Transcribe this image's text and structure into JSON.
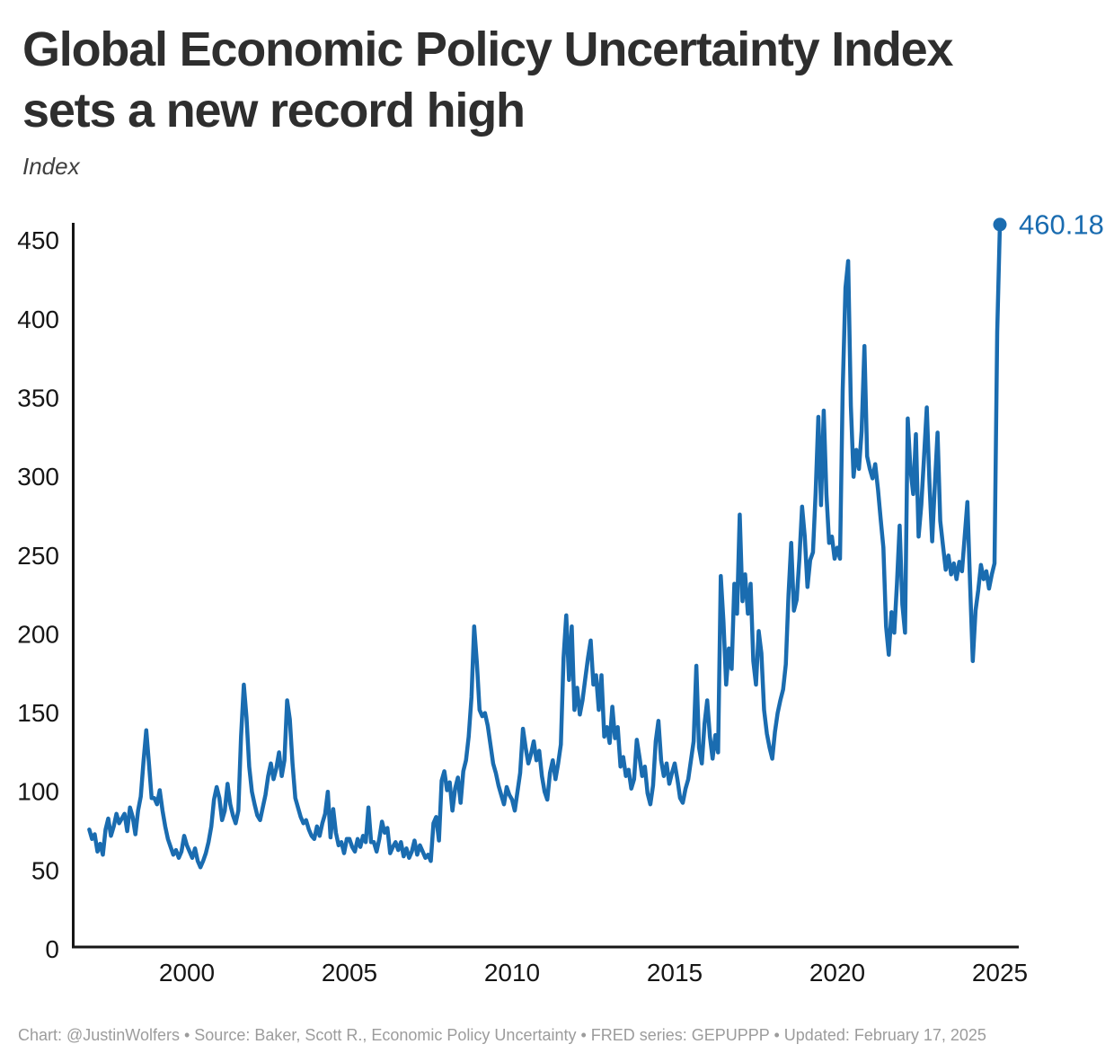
{
  "header": {
    "title_line1": "Global Economic Policy Uncertainty Index",
    "title_line2": "sets a new record high",
    "unit_label": "Index"
  },
  "footer": {
    "text": "Chart: @JustinWolfers • Source: Baker, Scott R., Economic Policy Uncertainty • FRED series: GEPUPPP • Updated: February 17, 2025"
  },
  "colors": {
    "line": "#1a6cb0",
    "end_label": "#1a6cb0",
    "axis": "#161616",
    "title": "#2e2e2e",
    "footer_text": "#9c9c9c"
  },
  "chart_data": {
    "type": "line",
    "title": "Global Economic Policy Uncertainty Index sets a new record high",
    "ylabel": "Index",
    "xlabel": "",
    "grid": false,
    "legend": "none",
    "frequency": "monthly",
    "x_range": [
      "1997-01",
      "2025-01"
    ],
    "ylim": [
      0,
      465
    ],
    "x_ticks": [
      2000,
      2005,
      2010,
      2015,
      2020,
      2025
    ],
    "y_ticks": [
      0,
      50,
      100,
      150,
      200,
      250,
      300,
      350,
      400,
      450
    ],
    "end_label": "460.18",
    "last_value": 460.18,
    "series": [
      {
        "name": "Global Economic Policy Uncertainty Index",
        "start": "1997-01",
        "values": [
          76,
          70,
          73,
          62,
          67,
          60,
          76,
          83,
          72,
          78,
          86,
          80,
          83,
          86,
          75,
          90,
          84,
          73,
          88,
          97,
          119,
          139,
          118,
          96,
          96,
          92,
          101,
          88,
          78,
          70,
          65,
          60,
          63,
          58,
          62,
          72,
          66,
          62,
          58,
          64,
          56,
          52,
          56,
          61,
          68,
          78,
          95,
          103,
          96,
          82,
          88,
          105,
          92,
          85,
          80,
          88,
          135,
          168,
          147,
          116,
          100,
          92,
          85,
          82,
          90,
          98,
          110,
          118,
          108,
          115,
          125,
          110,
          120,
          158,
          146,
          118,
          96,
          90,
          84,
          80,
          82,
          76,
          72,
          70,
          78,
          72,
          80,
          86,
          100,
          71,
          89,
          74,
          66,
          68,
          61,
          70,
          70,
          65,
          62,
          70,
          65,
          72,
          68,
          90,
          68,
          68,
          62,
          70,
          81,
          74,
          77,
          61,
          65,
          68,
          63,
          68,
          59,
          64,
          58,
          62,
          69,
          60,
          66,
          62,
          58,
          60,
          56,
          80,
          84,
          69,
          107,
          113,
          101,
          106,
          88,
          102,
          109,
          93,
          113,
          120,
          135,
          160,
          205,
          182,
          152,
          148,
          150,
          142,
          130,
          118,
          112,
          104,
          98,
          92,
          103,
          98,
          95,
          88,
          100,
          112,
          140,
          128,
          118,
          124,
          132,
          120,
          126,
          110,
          100,
          95,
          112,
          120,
          108,
          118,
          130,
          185,
          212,
          171,
          205,
          152,
          166,
          149,
          158,
          172,
          185,
          196,
          168,
          174,
          152,
          174,
          135,
          141,
          131,
          154,
          134,
          141,
          116,
          122,
          110,
          114,
          102,
          108,
          133,
          122,
          110,
          116,
          99,
          92,
          104,
          132,
          145,
          120,
          110,
          118,
          105,
          112,
          118,
          108,
          96,
          93,
          102,
          108,
          120,
          132,
          180,
          128,
          118,
          143,
          158,
          135,
          121,
          136,
          125,
          237,
          208,
          168,
          191,
          178,
          232,
          213,
          276,
          221,
          238,
          213,
          232,
          183,
          168,
          202,
          188,
          152,
          137,
          128,
          121,
          138,
          150,
          158,
          165,
          181,
          225,
          258,
          215,
          222,
          248,
          281,
          262,
          230,
          247,
          252,
          290,
          338,
          282,
          342,
          289,
          258,
          262,
          248,
          255,
          248,
          355,
          420,
          437,
          345,
          300,
          317,
          305,
          329,
          383,
          313,
          305,
          299,
          308,
          292,
          273,
          255,
          205,
          187,
          214,
          201,
          232,
          269,
          219,
          201,
          337,
          305,
          289,
          327,
          262,
          282,
          312,
          344,
          296,
          259,
          295,
          328,
          272,
          256,
          241,
          250,
          238,
          245,
          235,
          246,
          240,
          262,
          284,
          232,
          183,
          215,
          228,
          244,
          235,
          240,
          229,
          238,
          245,
          392,
          460.18
        ]
      }
    ]
  }
}
